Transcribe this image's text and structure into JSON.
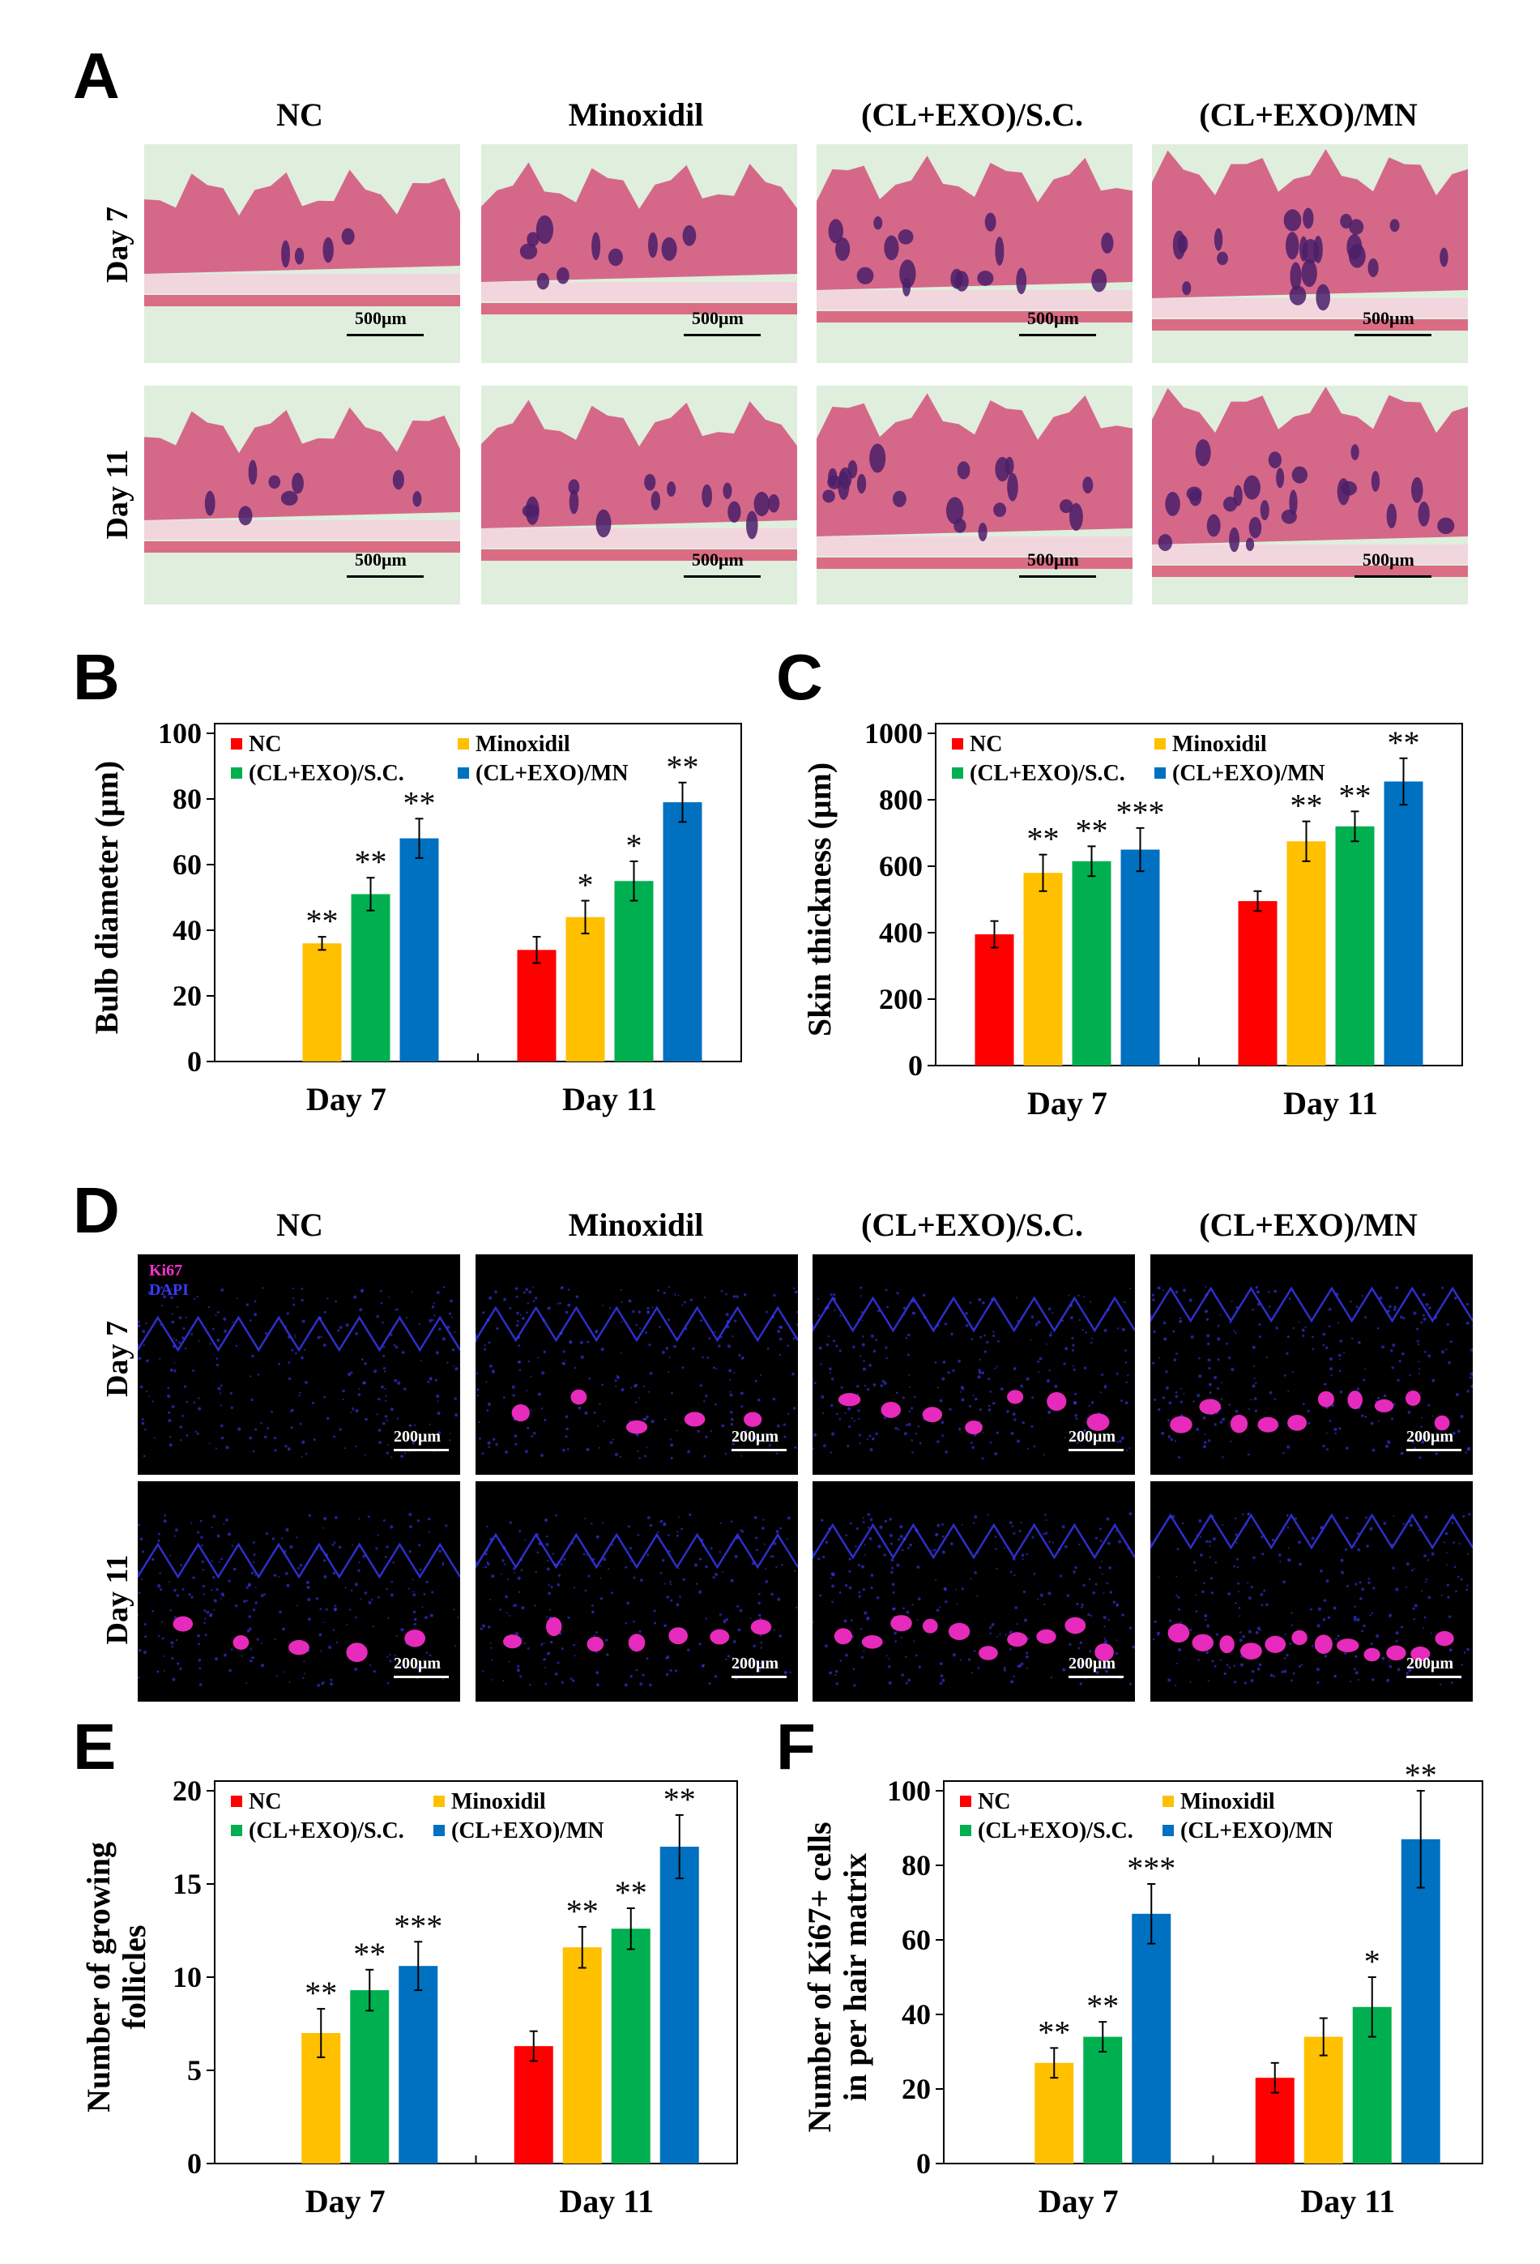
{
  "panels": {
    "A": "A",
    "B": "B",
    "C": "C",
    "D": "D",
    "E": "E",
    "F": "F"
  },
  "groups": [
    "NC",
    "Minoxidil",
    "(CL+EXO)/S.C.",
    "(CL+EXO)/MN"
  ],
  "days": [
    "Day 7",
    "Day 11"
  ],
  "he": {
    "scale_label": "500μm",
    "tissue_color": "#d4507a",
    "background_color": "#dfeedd"
  },
  "if": {
    "scale_label": "200μm",
    "legend": [
      "Ki67",
      "DAPI"
    ],
    "ki67_color": "#ff2fd0",
    "dapi_color": "#3a3aff"
  },
  "colors": {
    "NC": "#ff0000",
    "Minoxidil": "#ffc000",
    "CLEXO_SC": "#00b050",
    "CLEXO_MN": "#0070c0"
  },
  "chart_data": [
    {
      "id": "B",
      "type": "bar",
      "ylabel": "Bulb diameter (μm)",
      "ylim": [
        0,
        100
      ],
      "yticks": [
        0,
        20,
        40,
        60,
        80,
        100
      ],
      "categories": [
        "Day 7",
        "Day 11"
      ],
      "legend": [
        "NC",
        "Minoxidil",
        "(CL+EXO)/S.C.",
        "(CL+EXO)/MN"
      ],
      "series": [
        {
          "name": "NC",
          "values": [
            null,
            34
          ],
          "errors": [
            null,
            4
          ],
          "sig": [
            "",
            ""
          ]
        },
        {
          "name": "Minoxidil",
          "values": [
            36,
            44
          ],
          "errors": [
            2,
            5
          ],
          "sig": [
            "**",
            "*"
          ]
        },
        {
          "name": "(CL+EXO)/S.C.",
          "values": [
            51,
            55
          ],
          "errors": [
            5,
            6
          ],
          "sig": [
            "**",
            "*"
          ]
        },
        {
          "name": "(CL+EXO)/MN",
          "values": [
            68,
            79
          ],
          "errors": [
            6,
            6
          ],
          "sig": [
            "**",
            "**"
          ]
        }
      ]
    },
    {
      "id": "C",
      "type": "bar",
      "ylabel": "Skin thickness (μm)",
      "ylim": [
        0,
        1000
      ],
      "yticks": [
        0,
        200,
        400,
        600,
        800,
        1000
      ],
      "categories": [
        "Day 7",
        "Day 11"
      ],
      "legend": [
        "NC",
        "Minoxidil",
        "(CL+EXO)/S.C.",
        "(CL+EXO)/MN"
      ],
      "series": [
        {
          "name": "NC",
          "values": [
            395,
            495
          ],
          "errors": [
            40,
            30
          ],
          "sig": [
            "",
            ""
          ]
        },
        {
          "name": "Minoxidil",
          "values": [
            580,
            675
          ],
          "errors": [
            55,
            60
          ],
          "sig": [
            "**",
            "**"
          ]
        },
        {
          "name": "(CL+EXO)/S.C.",
          "values": [
            615,
            720
          ],
          "errors": [
            45,
            45
          ],
          "sig": [
            "**",
            "**"
          ]
        },
        {
          "name": "(CL+EXO)/MN",
          "values": [
            650,
            855
          ],
          "errors": [
            65,
            70
          ],
          "sig": [
            "***",
            "**"
          ]
        }
      ]
    },
    {
      "id": "E",
      "type": "bar",
      "ylabel_lines": [
        "Number of growing",
        "follicles"
      ],
      "ylim": [
        0,
        20
      ],
      "yticks": [
        0,
        5,
        10,
        15,
        20
      ],
      "categories": [
        "Day 7",
        "Day 11"
      ],
      "legend": [
        "NC",
        "Minoxidil",
        "(CL+EXO)/S.C.",
        "(CL+EXO)/MN"
      ],
      "series": [
        {
          "name": "NC",
          "values": [
            null,
            6.3
          ],
          "errors": [
            null,
            0.8
          ],
          "sig": [
            "",
            ""
          ]
        },
        {
          "name": "Minoxidil",
          "values": [
            7.0,
            11.6
          ],
          "errors": [
            1.3,
            1.1
          ],
          "sig": [
            "**",
            "**"
          ]
        },
        {
          "name": "(CL+EXO)/S.C.",
          "values": [
            9.3,
            12.6
          ],
          "errors": [
            1.1,
            1.1
          ],
          "sig": [
            "**",
            "**"
          ]
        },
        {
          "name": "(CL+EXO)/MN",
          "values": [
            10.6,
            17.0
          ],
          "errors": [
            1.3,
            1.7
          ],
          "sig": [
            "***",
            "**"
          ]
        }
      ]
    },
    {
      "id": "F",
      "type": "bar",
      "ylabel_lines": [
        "Number of Ki67+ cells",
        "in per hair matrix"
      ],
      "ylim": [
        0,
        100
      ],
      "yticks": [
        0,
        20,
        40,
        60,
        80,
        100
      ],
      "categories": [
        "Day 7",
        "Day 11"
      ],
      "legend": [
        "NC",
        "Minoxidil",
        "(CL+EXO)/S.C.",
        "(CL+EXO)/MN"
      ],
      "series": [
        {
          "name": "NC",
          "values": [
            null,
            23
          ],
          "errors": [
            null,
            4
          ],
          "sig": [
            "",
            ""
          ]
        },
        {
          "name": "Minoxidil",
          "values": [
            27,
            34
          ],
          "errors": [
            4,
            5
          ],
          "sig": [
            "**",
            ""
          ]
        },
        {
          "name": "(CL+EXO)/S.C.",
          "values": [
            34,
            42
          ],
          "errors": [
            4,
            8
          ],
          "sig": [
            "**",
            "*"
          ]
        },
        {
          "name": "(CL+EXO)/MN",
          "values": [
            67,
            87
          ],
          "errors": [
            8,
            13
          ],
          "sig": [
            "***",
            "**"
          ]
        }
      ]
    }
  ]
}
